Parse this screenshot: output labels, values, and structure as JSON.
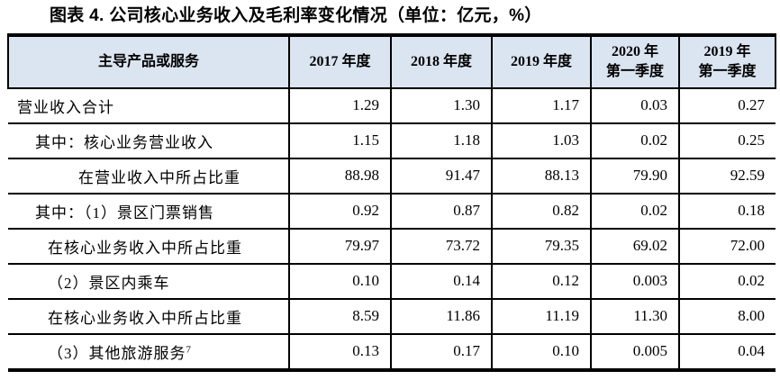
{
  "title": "图表 4. 公司核心业务收入及毛利率变化情况（单位：亿元，%）",
  "table": {
    "columns": [
      "主导产品或服务",
      "2017 年度",
      "2018 年度",
      "2019 年度",
      "2020 年\n第一季度",
      "2019 年\n第一季度"
    ],
    "rows": [
      {
        "label": "营业收入合计",
        "indent": 0,
        "values": [
          "1.29",
          "1.30",
          "1.17",
          "0.03",
          "0.27"
        ]
      },
      {
        "label": "其中：核心业务营业收入",
        "indent": 1,
        "values": [
          "1.15",
          "1.18",
          "1.03",
          "0.02",
          "0.25"
        ]
      },
      {
        "label": "在营业收入中所占比重",
        "indent": 3,
        "values": [
          "88.98",
          "91.47",
          "88.13",
          "79.90",
          "92.59"
        ]
      },
      {
        "label": "其中：（1）景区门票销售",
        "indent": 1,
        "values": [
          "0.92",
          "0.87",
          "0.82",
          "0.02",
          "0.18"
        ]
      },
      {
        "label": "在核心业务收入中所占比重",
        "indent": 2,
        "values": [
          "79.97",
          "73.72",
          "79.35",
          "69.02",
          "72.00"
        ]
      },
      {
        "label": "（2）景区内乘车",
        "indent": 2,
        "values": [
          "0.10",
          "0.14",
          "0.12",
          "0.003",
          "0.02"
        ]
      },
      {
        "label": "在核心业务收入中所占比重",
        "indent": 2,
        "values": [
          "8.59",
          "11.86",
          "11.19",
          "11.30",
          "8.00"
        ]
      },
      {
        "label": "（3）其他旅游服务",
        "label_superscript": "7",
        "indent": 2,
        "values": [
          "0.13",
          "0.17",
          "0.10",
          "0.005",
          "0.04"
        ]
      }
    ]
  },
  "colors": {
    "header_bg": "#dbe5f1",
    "border": "#000000",
    "text": "#000000"
  }
}
